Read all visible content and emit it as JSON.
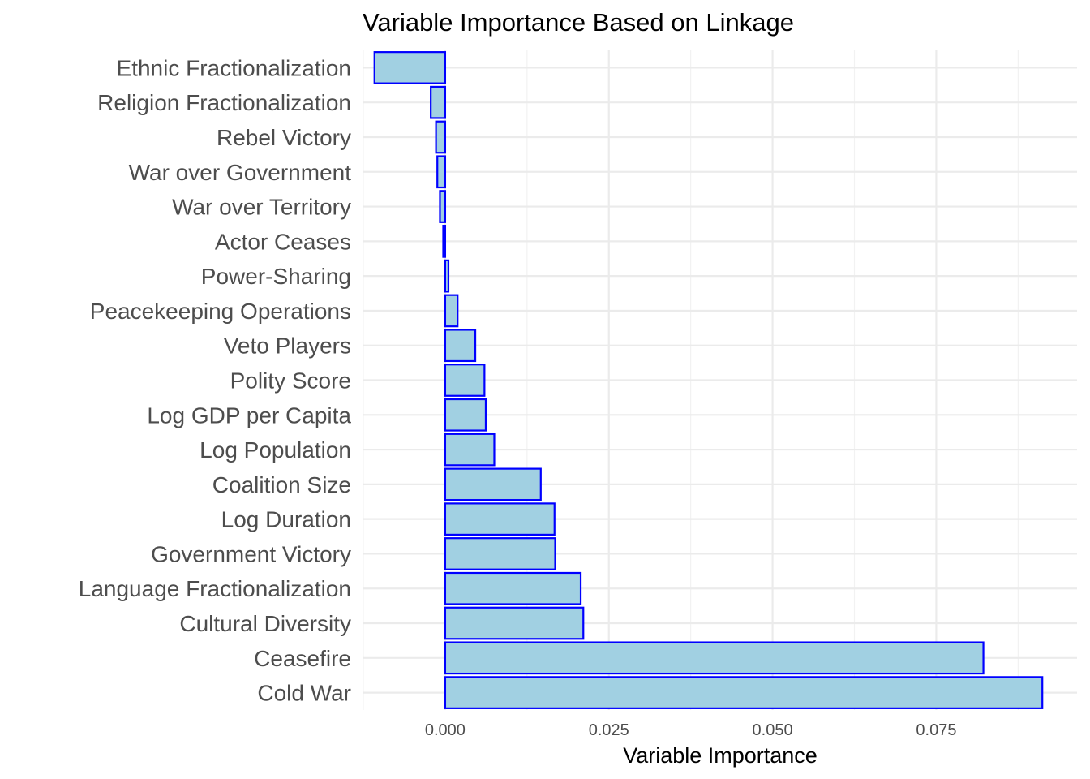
{
  "chart_data": {
    "type": "bar",
    "orientation": "horizontal",
    "title": "Variable Importance Based on Linkage",
    "xlabel": "Variable Importance",
    "ylabel": "",
    "xlim": [
      -0.0125,
      0.0965
    ],
    "x_ticks": [
      0.0,
      0.025,
      0.05,
      0.075
    ],
    "x_tick_labels": [
      "0.000",
      "0.025",
      "0.050",
      "0.075"
    ],
    "grid": true,
    "legend": "none",
    "bar_fill": "#a1d0e2",
    "bar_stroke": "#0000ff",
    "categories": [
      "Ethnic Fractionalization",
      "Religion Fractionalization",
      "Rebel Victory",
      "War over Government",
      "War over Territory",
      "Actor Ceases",
      "Power-Sharing",
      "Peacekeeping Operations",
      "Veto Players",
      "Polity Score",
      "Log GDP per Capita",
      "Log Population",
      "Coalition Size",
      "Log Duration",
      "Government Victory",
      "Language Fractionalization",
      "Cultural Diversity",
      "Ceasefire",
      "Cold War"
    ],
    "values": [
      -0.0108,
      -0.0022,
      -0.0014,
      -0.0012,
      -0.0008,
      -0.0003,
      0.0005,
      0.0019,
      0.0046,
      0.006,
      0.0062,
      0.0075,
      0.0146,
      0.0167,
      0.0168,
      0.0207,
      0.0211,
      0.0822,
      0.0912
    ]
  }
}
